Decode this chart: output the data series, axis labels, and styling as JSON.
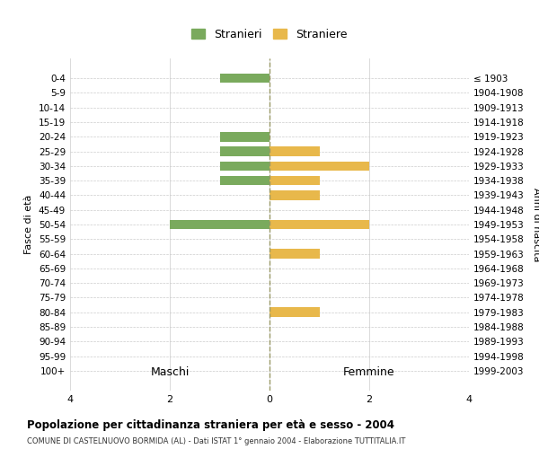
{
  "age_groups": [
    "0-4",
    "5-9",
    "10-14",
    "15-19",
    "20-24",
    "25-29",
    "30-34",
    "35-39",
    "40-44",
    "45-49",
    "50-54",
    "55-59",
    "60-64",
    "65-69",
    "70-74",
    "75-79",
    "80-84",
    "85-89",
    "90-94",
    "95-99",
    "100+"
  ],
  "birth_years": [
    "1999-2003",
    "1994-1998",
    "1989-1993",
    "1984-1988",
    "1979-1983",
    "1974-1978",
    "1969-1973",
    "1964-1968",
    "1959-1963",
    "1954-1958",
    "1949-1953",
    "1944-1948",
    "1939-1943",
    "1934-1938",
    "1929-1933",
    "1924-1928",
    "1919-1923",
    "1914-1918",
    "1909-1913",
    "1904-1908",
    "≤ 1903"
  ],
  "maschi": [
    1,
    0,
    0,
    0,
    1,
    1,
    1,
    1,
    0,
    0,
    2,
    0,
    0,
    0,
    0,
    0,
    0,
    0,
    0,
    0,
    0
  ],
  "femmine": [
    0,
    0,
    0,
    0,
    0,
    1,
    2,
    1,
    1,
    0,
    2,
    0,
    1,
    0,
    0,
    0,
    1,
    0,
    0,
    0,
    0
  ],
  "color_maschi": "#7aaa5d",
  "color_femmine": "#e8b84b",
  "title": "Popolazione per cittadinanza straniera per età e sesso - 2004",
  "subtitle": "COMUNE DI CASTELNUOVO BORMIDA (AL) - Dati ISTAT 1° gennaio 2004 - Elaborazione TUTTITALIA.IT",
  "legend_maschi": "Stranieri",
  "legend_femmine": "Straniere",
  "xlabel_left": "Maschi",
  "xlabel_right": "Femmine",
  "ylabel_left": "Fasce di età",
  "ylabel_right": "Anni di nascita",
  "xlim": 4,
  "bg_color": "#ffffff",
  "grid_color": "#cccccc",
  "bar_height": 0.65
}
